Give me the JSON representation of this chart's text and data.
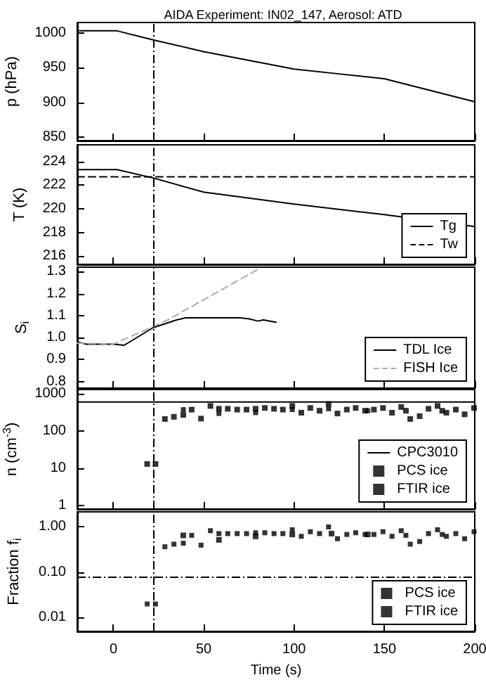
{
  "chart_data": [
    {
      "type": "line",
      "title": "AIDA Experiment: IN02_147, Aerosol: ATD",
      "ylabel": "p (hPa)",
      "x": [
        -20,
        2,
        22,
        50,
        100,
        125,
        150,
        200
      ],
      "series": [
        {
          "color": "#000000",
          "values": [
            1003,
            1003,
            990,
            973,
            948,
            941,
            934,
            901
          ]
        }
      ],
      "xlim": [
        -20,
        200
      ],
      "xticks": [
        0,
        50,
        100,
        150,
        200
      ],
      "ylim": [
        845,
        1015
      ],
      "yticks": [
        850,
        900,
        950,
        1000
      ],
      "tick_labels": "y",
      "grid": false,
      "legend": false,
      "marker": "none",
      "ref_lines": [
        {
          "axis": "x",
          "value": 22,
          "color": "#000000",
          "line_style": "dashed"
        }
      ]
    },
    {
      "type": "line",
      "ylabel": "T (K)",
      "xlim": [
        -20,
        200
      ],
      "xticks": [
        0,
        50,
        100,
        150,
        200
      ],
      "ylim": [
        215.3,
        225.4
      ],
      "yticks": [
        216,
        218,
        220,
        222,
        224
      ],
      "tick_labels": "y",
      "grid": false,
      "legend": "bottom right",
      "marker": "none",
      "series": [
        {
          "name": "Tg",
          "color": "#000000",
          "x": [
            -20,
            2,
            22,
            50,
            100,
            150,
            200
          ],
          "values": [
            223.3,
            223.3,
            222.6,
            221.4,
            220.4,
            219.5,
            218.5
          ]
        },
        {
          "name": "Tw",
          "color": "#000000",
          "line_style": "dashed",
          "x": [
            -20,
            200
          ],
          "values": [
            222.7,
            222.7
          ]
        }
      ],
      "ref_lines": [
        {
          "axis": "x",
          "value": 22,
          "color": "#000000",
          "line_style": "dashed"
        }
      ]
    },
    {
      "type": "line",
      "ylabel": "S$_{i}$",
      "xlim": [
        -20,
        200
      ],
      "xticks": [
        0,
        50,
        100,
        150,
        200
      ],
      "ylim": [
        0.77,
        1.32
      ],
      "yticks": [
        0.8,
        0.9,
        {
          "value": 1,
          "label": "1.0"
        },
        1.1,
        1.2,
        1.3
      ],
      "tick_labels": "y",
      "grid": false,
      "legend": "bottom right",
      "marker": "none",
      "series": [
        {
          "name": "TDL Ice",
          "color": "#000000",
          "x": [
            -20,
            -15,
            0,
            6,
            22,
            35,
            40,
            70,
            75,
            80,
            83,
            90
          ],
          "values": [
            0.98,
            0.97,
            0.97,
            0.965,
            1.045,
            1.08,
            1.09,
            1.09,
            1.085,
            1.075,
            1.08,
            1.07
          ]
        },
        {
          "name": "FISH Ice",
          "color": "#aaaaaa",
          "line_style": "dashed",
          "x": [
            -20,
            0,
            22,
            30,
            80
          ],
          "values": [
            0.975,
            0.97,
            1.05,
            1.08,
            1.31
          ]
        }
      ],
      "ref_lines": [
        {
          "axis": "x",
          "value": 22,
          "color": "#000000",
          "line_style": "dashed"
        }
      ]
    },
    {
      "type": "scatter",
      "ylabel": "n (cm$^{-3}$)",
      "log": "y",
      "xlim": [
        -20,
        200
      ],
      "xticks": [
        0,
        50,
        100,
        150,
        200
      ],
      "ylim": [
        0.8,
        1300
      ],
      "yticks": [
        1,
        10,
        100,
        1000
      ],
      "tick_labels": "y",
      "grid": false,
      "legend": "bottom right",
      "marker": "square",
      "series": [
        {
          "name": "CPC3010",
          "type": "line",
          "marker": "none",
          "color": "#000000",
          "x": [
            -20,
            200
          ],
          "values": [
            600,
            600
          ]
        },
        {
          "name": "PCS ice",
          "color": "#000000",
          "x": [
            18.7,
            23.3,
            28.5,
            33.5,
            38.7,
            43.3,
            48.5,
            53.7,
            58.4,
            63.3,
            68.5,
            73.7,
            78.7,
            83.8,
            88.9,
            93.8,
            99,
            104,
            109,
            114.1,
            119.1,
            124,
            129.2,
            134.1,
            139.3,
            144.2,
            149.2,
            154.2,
            159.3,
            161.9,
            164.3,
            169.5,
            174.4,
            179.4,
            182,
            184.3,
            189.5,
            194.4,
            199.6
          ],
          "values": [
            13,
            13,
            210,
            240,
            270,
            375,
            215,
            470,
            395,
            395,
            375,
            375,
            395,
            415,
            395,
            375,
            470,
            310,
            415,
            350,
            530,
            295,
            375,
            415,
            350,
            375,
            415,
            310,
            440,
            350,
            210,
            250,
            395,
            470,
            350,
            310,
            375,
            280,
            415
          ]
        },
        {
          "name": "FTIR ice",
          "color": "#000000",
          "x": [
            38.7,
            58.4,
            78.7,
            99,
            119.1,
            140.8
          ],
          "values": [
            375,
            295,
            310,
            375,
            395,
            350
          ]
        }
      ],
      "ref_lines": [
        {
          "axis": "x",
          "value": 22,
          "color": "#000000",
          "line_style": "dashed"
        }
      ]
    },
    {
      "type": "scatter",
      "ylabel": "Fraction f$_{i}$",
      "xlabel": "Time (s)",
      "log": "y",
      "xlim": [
        -20,
        200
      ],
      "xticks": [
        0,
        50,
        100,
        150,
        200
      ],
      "ylim": [
        0.005,
        2.1
      ],
      "yticks": [
        {
          "value": 0.01,
          "label": "0.01"
        },
        {
          "value": 0.1,
          "label": "0.10"
        },
        {
          "value": 1,
          "label": "1.00"
        }
      ],
      "grid": false,
      "legend": "bottom right",
      "marker": "square",
      "series": [
        {
          "name": "PCS ice",
          "color": "#000000",
          "x": [
            18.7,
            23.3,
            28.5,
            33.5,
            38.7,
            43.3,
            48.5,
            53.7,
            58.4,
            63.3,
            68.5,
            73.7,
            78.7,
            83.8,
            88.9,
            93.8,
            99,
            104,
            109,
            114.1,
            119.1,
            124,
            129.2,
            134.1,
            139.3,
            144.2,
            149.2,
            154.2,
            159.3,
            161.9,
            164.3,
            169.5,
            174.4,
            179.4,
            182,
            184.3,
            189.5,
            194.4,
            199.6
          ],
          "values": [
            0.02,
            0.02,
            0.36,
            0.41,
            0.43,
            0.64,
            0.39,
            0.81,
            0.7,
            0.7,
            0.7,
            0.7,
            0.73,
            0.73,
            0.7,
            0.7,
            0.85,
            0.61,
            0.77,
            0.7,
            0.98,
            0.54,
            0.67,
            0.73,
            0.67,
            0.67,
            0.77,
            0.61,
            0.81,
            0.64,
            0.41,
            0.47,
            0.7,
            0.85,
            0.67,
            0.61,
            0.7,
            0.54,
            0.77
          ]
        },
        {
          "name": "FTIR ice",
          "color": "#000000",
          "x": [
            38.7,
            58.4,
            78.7,
            99,
            120.7,
            140.8
          ],
          "values": [
            0.64,
            0.51,
            0.61,
            0.67,
            0.7,
            0.67
          ]
        }
      ],
      "ref_lines": [
        {
          "axis": "x",
          "value": 22,
          "color": "#000000",
          "line_style": "dashed"
        },
        {
          "axis": "y",
          "value": 0.08,
          "color": "#000000",
          "line_style": "dashed"
        }
      ]
    }
  ]
}
